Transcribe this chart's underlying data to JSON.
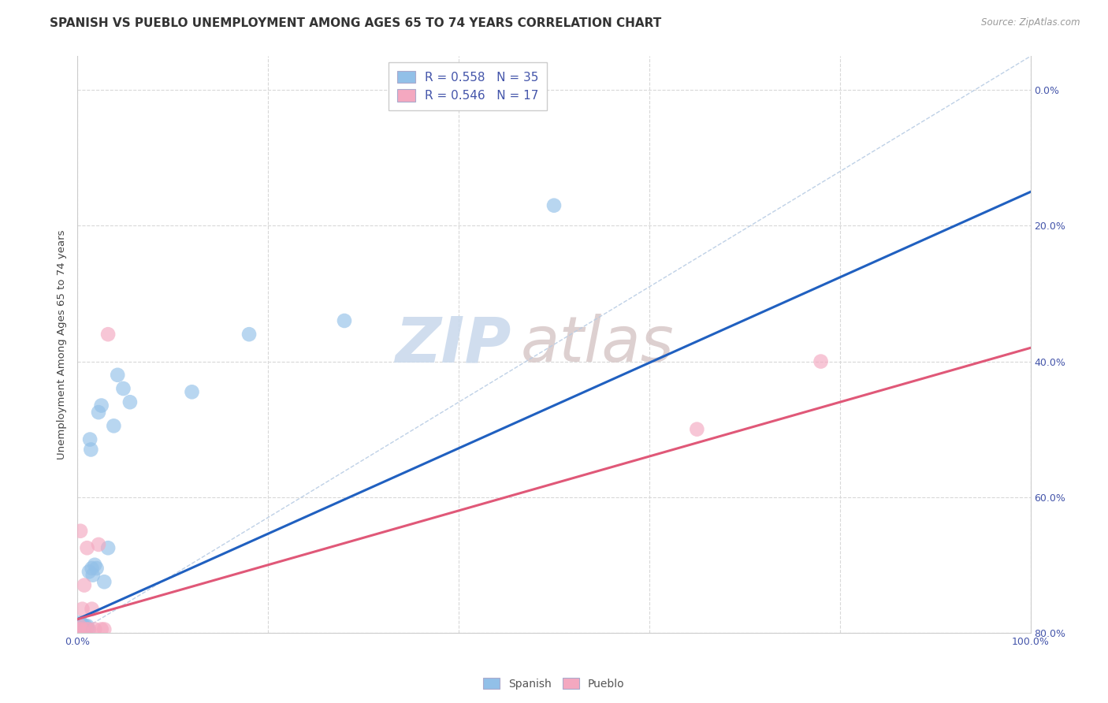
{
  "title": "SPANISH VS PUEBLO UNEMPLOYMENT AMONG AGES 65 TO 74 YEARS CORRELATION CHART",
  "source": "Source: ZipAtlas.com",
  "xlabel_ticks": [
    "0.0%",
    "",
    "",
    "",
    "",
    "100.0%"
  ],
  "xlabel_vals": [
    0.0,
    0.2,
    0.4,
    0.6,
    0.8,
    1.0
  ],
  "ylabel": "Unemployment Among Ages 65 to 74 years",
  "ylabel_ticks_right": [
    "80.0%",
    "60.0%",
    "40.0%",
    "20.0%",
    "0.0%"
  ],
  "ylabel_vals_right": [
    0.8,
    0.6,
    0.4,
    0.2,
    0.0
  ],
  "spanish_x": [
    0.001,
    0.002,
    0.002,
    0.003,
    0.003,
    0.004,
    0.004,
    0.005,
    0.005,
    0.006,
    0.006,
    0.007,
    0.008,
    0.009,
    0.01,
    0.011,
    0.012,
    0.013,
    0.014,
    0.015,
    0.016,
    0.018,
    0.02,
    0.022,
    0.025,
    0.028,
    0.032,
    0.038,
    0.042,
    0.048,
    0.055,
    0.12,
    0.18,
    0.28,
    0.5
  ],
  "spanish_y": [
    0.005,
    0.008,
    0.01,
    0.005,
    0.015,
    0.007,
    0.01,
    0.008,
    0.012,
    0.005,
    0.01,
    0.008,
    0.01,
    0.005,
    0.01,
    0.005,
    0.09,
    0.285,
    0.27,
    0.095,
    0.085,
    0.1,
    0.095,
    0.325,
    0.335,
    0.075,
    0.125,
    0.305,
    0.38,
    0.36,
    0.34,
    0.355,
    0.44,
    0.46,
    0.63
  ],
  "pueblo_x": [
    0.001,
    0.002,
    0.003,
    0.004,
    0.005,
    0.007,
    0.009,
    0.01,
    0.012,
    0.015,
    0.018,
    0.022,
    0.025,
    0.028,
    0.032,
    0.65,
    0.78
  ],
  "pueblo_y": [
    0.005,
    0.01,
    0.15,
    0.005,
    0.035,
    0.07,
    0.005,
    0.125,
    0.005,
    0.035,
    0.005,
    0.13,
    0.005,
    0.005,
    0.44,
    0.3,
    0.4
  ],
  "spanish_color": "#92c0e8",
  "pueblo_color": "#f4a8c0",
  "spanish_line_color": "#2060c0",
  "pueblo_line_color": "#e05878",
  "diag_line_color": "#b8cce4",
  "spanish_R": "0.558",
  "spanish_N": "35",
  "pueblo_R": "0.546",
  "pueblo_N": "17",
  "legend_spanish_label": "Spanish",
  "legend_pueblo_label": "Pueblo",
  "background_color": "#ffffff",
  "grid_color": "#d8d8d8",
  "watermark_zip": "ZIP",
  "watermark_atlas": "atlas",
  "title_fontsize": 11,
  "axis_fontsize": 9,
  "legend_fontsize": 11,
  "xlim": [
    0,
    1.0
  ],
  "ylim": [
    0,
    0.85
  ],
  "spanish_line_slope": 0.63,
  "spanish_line_intercept": 0.02,
  "pueblo_line_slope": 0.4,
  "pueblo_line_intercept": 0.02
}
